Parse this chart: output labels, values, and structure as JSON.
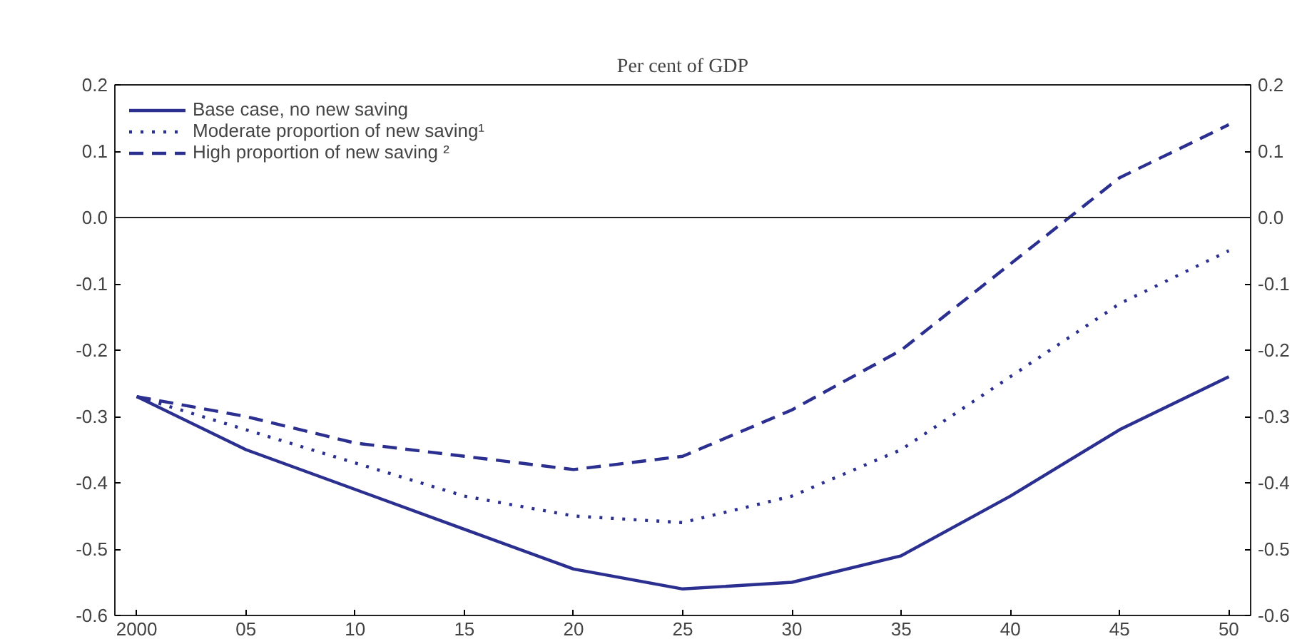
{
  "chart_data": {
    "type": "line",
    "title": "Per cent of GDP",
    "x": [
      2000,
      2005,
      2010,
      2015,
      2020,
      2025,
      2030,
      2035,
      2040,
      2045,
      2050
    ],
    "series": [
      {
        "name": "Base case, no new saving",
        "color": "#2b2f8f",
        "line_style": "solid",
        "values": [
          -0.27,
          -0.35,
          -0.41,
          -0.47,
          -0.53,
          -0.56,
          -0.55,
          -0.51,
          -0.42,
          -0.32,
          -0.24
        ]
      },
      {
        "name": "Moderate proportion of new saving¹",
        "color": "#2b2f8f",
        "line_style": "dotted",
        "values": [
          -0.27,
          -0.32,
          -0.37,
          -0.42,
          -0.45,
          -0.46,
          -0.42,
          -0.35,
          -0.24,
          -0.13,
          -0.05
        ]
      },
      {
        "name": "High proportion of new saving ²",
        "color": "#2b2f8f",
        "line_style": "dashed",
        "values": [
          -0.27,
          -0.3,
          -0.34,
          -0.36,
          -0.38,
          -0.36,
          -0.29,
          -0.2,
          -0.07,
          0.06,
          0.14
        ]
      }
    ],
    "xlim": [
      1999,
      2051
    ],
    "xticks": [
      {
        "value": 2000,
        "label": "2000"
      },
      {
        "value": 2005,
        "label": "05"
      },
      {
        "value": 2010,
        "label": "10"
      },
      {
        "value": 2015,
        "label": "15"
      },
      {
        "value": 2020,
        "label": "20"
      },
      {
        "value": 2025,
        "label": "25"
      },
      {
        "value": 2030,
        "label": "30"
      },
      {
        "value": 2035,
        "label": "35"
      },
      {
        "value": 2040,
        "label": "40"
      },
      {
        "value": 2045,
        "label": "45"
      },
      {
        "value": 2050,
        "label": "50"
      }
    ],
    "ylim": [
      -0.6,
      0.2
    ],
    "yticks": [
      {
        "value": -0.6,
        "label": "-0.6"
      },
      {
        "value": -0.5,
        "label": "-0.5"
      },
      {
        "value": -0.4,
        "label": "-0.4"
      },
      {
        "value": -0.3,
        "label": "-0.3"
      },
      {
        "value": -0.2,
        "label": "-0.2"
      },
      {
        "value": -0.1,
        "label": "-0.1"
      },
      {
        "value": 0,
        "label": "0.0"
      },
      {
        "value": 0.1,
        "label": "0.1"
      },
      {
        "value": 0.2,
        "label": "0.2"
      }
    ],
    "y2lim": [
      -0.6,
      0.2
    ],
    "y2ticks": [
      {
        "value": -0.6,
        "label": "-0.6"
      },
      {
        "value": -0.5,
        "label": "-0.5"
      },
      {
        "value": -0.4,
        "label": "-0.4"
      },
      {
        "value": -0.3,
        "label": "-0.3"
      },
      {
        "value": -0.2,
        "label": "-0.2"
      },
      {
        "value": -0.1,
        "label": "-0.1"
      },
      {
        "value": 0,
        "label": "0.0"
      },
      {
        "value": 0.1,
        "label": "0.1"
      },
      {
        "value": 0.2,
        "label": "0.2"
      }
    ],
    "ref_lines": [
      {
        "axis": "y",
        "value": 0,
        "color": "#222222"
      }
    ],
    "grid": false,
    "legend": "top left"
  }
}
